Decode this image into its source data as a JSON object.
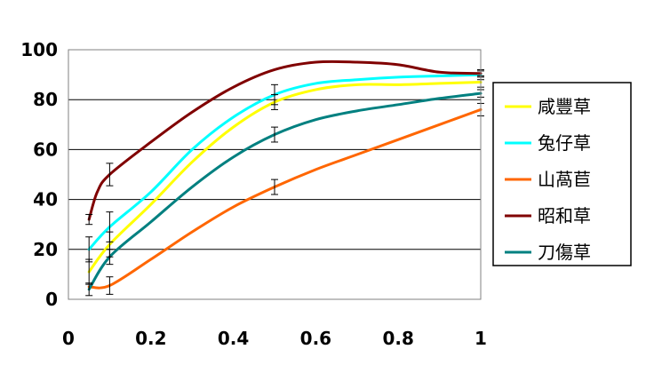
{
  "chart_data": {
    "type": "line",
    "title": "",
    "xlabel": "",
    "ylabel": "",
    "xlim": [
      0,
      1
    ],
    "ylim": [
      0,
      100
    ],
    "x_ticks": [
      "0",
      "0.2",
      "0.4",
      "0.6",
      "0.8",
      "1"
    ],
    "y_ticks": [
      "0",
      "20",
      "40",
      "60",
      "80",
      "100"
    ],
    "grid": "horizontal",
    "legend_position": "right",
    "series": [
      {
        "name": "咸豐草",
        "color": "#ffff00",
        "x": [
          0.05,
          0.1,
          0.2,
          0.3,
          0.4,
          0.5,
          0.6,
          0.7,
          0.8,
          0.9,
          1.0
        ],
        "y": [
          11,
          22,
          38,
          55,
          69,
          79,
          84,
          86,
          86,
          86.5,
          87
        ],
        "error_bars": [
          {
            "x": 0.05,
            "y": 11,
            "err": 5
          },
          {
            "x": 0.1,
            "y": 22,
            "err": 5
          },
          {
            "x": 0.5,
            "y": 79,
            "err": 3
          },
          {
            "x": 1.0,
            "y": 87,
            "err": 2
          }
        ]
      },
      {
        "name": "兔仔草",
        "color": "#00ffff",
        "x": [
          0.05,
          0.1,
          0.2,
          0.3,
          0.4,
          0.5,
          0.6,
          0.7,
          0.8,
          0.9,
          1.0
        ],
        "y": [
          20,
          29,
          43,
          60,
          73,
          82,
          86.5,
          88,
          89,
          89.5,
          90
        ],
        "error_bars": [
          {
            "x": 0.05,
            "y": 20,
            "err": 5
          },
          {
            "x": 0.1,
            "y": 29,
            "err": 6
          },
          {
            "x": 0.5,
            "y": 82,
            "err": 4
          },
          {
            "x": 1.0,
            "y": 90,
            "err": 2
          }
        ]
      },
      {
        "name": "山萵苣",
        "color": "#ff6600",
        "x": [
          0.05,
          0.1,
          0.2,
          0.3,
          0.4,
          0.5,
          0.6,
          0.7,
          0.8,
          0.9,
          1.0
        ],
        "y": [
          5,
          5.5,
          16,
          27,
          37,
          45,
          52,
          58,
          64,
          70,
          76
        ],
        "error_bars": [
          {
            "x": 0.1,
            "y": 5.5,
            "err": 3.5
          },
          {
            "x": 0.5,
            "y": 45,
            "err": 3
          },
          {
            "x": 1.0,
            "y": 76,
            "err": 2.5
          }
        ]
      },
      {
        "name": "昭和草",
        "color": "#800000",
        "x": [
          0.05,
          0.07,
          0.1,
          0.2,
          0.3,
          0.4,
          0.5,
          0.6,
          0.7,
          0.8,
          0.9,
          1.0
        ],
        "y": [
          32,
          43,
          50,
          63,
          75,
          85,
          92,
          95,
          95,
          94,
          91,
          90.5
        ],
        "error_bars": [
          {
            "x": 0.05,
            "y": 32,
            "err": 2
          },
          {
            "x": 0.1,
            "y": 50,
            "err": 4.5
          },
          {
            "x": 1.0,
            "y": 90.5,
            "err": 1
          }
        ]
      },
      {
        "name": "刀傷草",
        "color": "#008080",
        "x": [
          0.05,
          0.1,
          0.2,
          0.3,
          0.4,
          0.5,
          0.6,
          0.7,
          0.8,
          0.9,
          1.0
        ],
        "y": [
          4,
          17,
          31,
          45,
          57,
          66,
          72,
          75.5,
          78,
          80.5,
          82.5
        ],
        "error_bars": [
          {
            "x": 0.05,
            "y": 4,
            "err": 2.5
          },
          {
            "x": 0.1,
            "y": 17,
            "err": 3
          },
          {
            "x": 0.5,
            "y": 66,
            "err": 3
          },
          {
            "x": 1.0,
            "y": 82.5,
            "err": 1.5
          }
        ]
      }
    ]
  }
}
